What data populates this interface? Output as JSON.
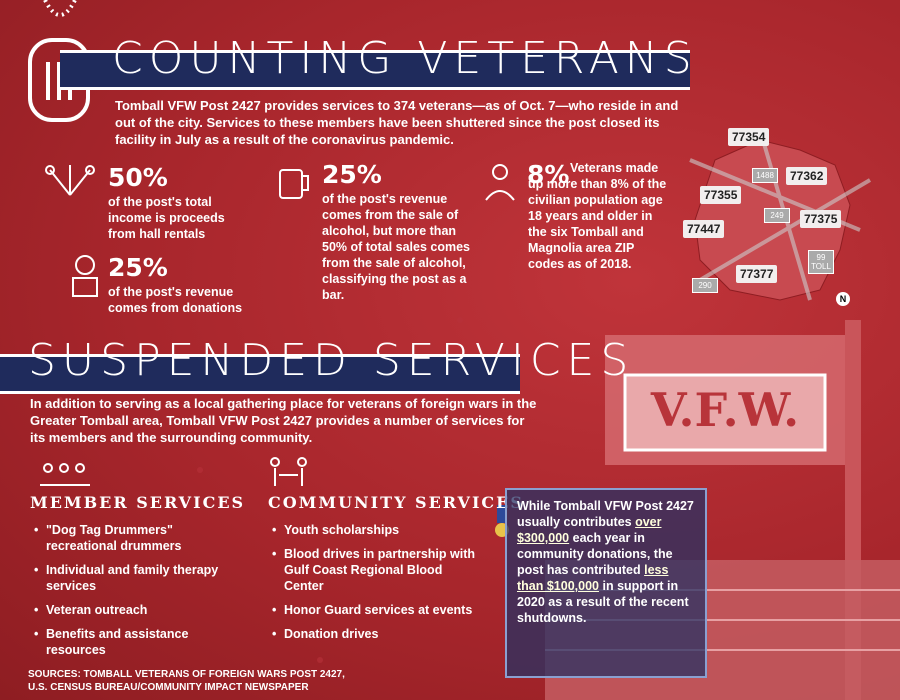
{
  "header": {
    "title": "COUNTING VETERANS",
    "intro": "Tomball VFW Post 2427 provides services to 374 veterans—as of Oct. 7—who reside in and out of the city. Services to these members have been shuttered since the post closed its facility in July as a result of the coronavirus pandemic."
  },
  "stats": [
    {
      "figure": "50%",
      "text": "of the post's total income is proceeds from hall rentals"
    },
    {
      "figure": "25%",
      "text": "of the post's revenue comes from donations"
    },
    {
      "figure": "25%",
      "text": "of the post's revenue comes from the sale of alcohol, but more than 50% of total sales comes from the sale of alcohol, classifying the post as a bar."
    },
    {
      "figure": "8%",
      "text": "Veterans made up more than 8% of the civilian population age 18 years and older",
      "text_bold": "in the six Tomball and Magnolia area ZIP codes as of 2018."
    }
  ],
  "map": {
    "zip_codes": [
      "77354",
      "77362",
      "77355",
      "77375",
      "77447",
      "77377"
    ],
    "roads": [
      "1488",
      "249",
      "99 TOLL",
      "290"
    ],
    "compass": "N"
  },
  "section": {
    "title": "SUSPENDED SERVICES",
    "intro": "In addition to serving as a local gathering place for veterans of foreign wars in the Greater Tomball area, Tomball VFW Post 2427 provides a number of services for its members and the surrounding community."
  },
  "member_services": {
    "heading": "MEMBER SERVICES",
    "items": [
      "\"Dog Tag Drummers\" recreational drummers",
      "Individual and family therapy services",
      "Veteran outreach",
      "Benefits and assistance resources"
    ]
  },
  "community_services": {
    "heading": "COMMUNITY SERVICES",
    "items": [
      "Youth scholarships",
      "Blood drives in partnership with Gulf Coast Regional Blood Center",
      "Honor Guard services at events",
      "Donation drives"
    ]
  },
  "callout": {
    "text_1": "While Tomball VFW Post 2427 usually contributes",
    "amount_1": "over $300,000",
    "text_2": "each year in community donations, the post has contributed",
    "amount_2": "less than $100,000",
    "text_3": "in support in 2020 as a result of the recent shutdowns."
  },
  "sign": "V.F.W.",
  "sources": [
    "SOURCES: TOMBALL VETERANS OF FOREIGN WARS POST 2427,",
    "U.S. CENSUS BUREAU/COMMUNITY IMPACT NEWSPAPER"
  ]
}
